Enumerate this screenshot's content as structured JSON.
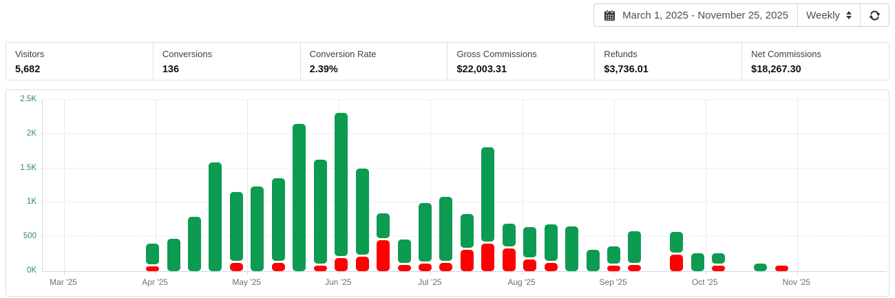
{
  "toolbar": {
    "date_range": "March 1, 2025 - November 25, 2025",
    "interval": "Weekly"
  },
  "stats": [
    {
      "label": "Visitors",
      "value": "5,682"
    },
    {
      "label": "Conversions",
      "value": "136"
    },
    {
      "label": "Conversion Rate",
      "value": "2.39%"
    },
    {
      "label": "Gross Commissions",
      "value": "$22,003.31"
    },
    {
      "label": "Refunds",
      "value": "$3,736.01"
    },
    {
      "label": "Net Commissions",
      "value": "$18,267.30"
    }
  ],
  "colors": {
    "bar_green": "#0d9b52",
    "bar_red": "#fe0000",
    "y_label": "#2e8b57",
    "x_label": "#667079"
  },
  "chart_data": {
    "type": "bar",
    "stacked": true,
    "title": "",
    "xlabel": "",
    "ylabel": "",
    "ylim": [
      0,
      2500
    ],
    "grid": true,
    "legend": false,
    "interval": "weekly",
    "y_tick_values": [
      0,
      500,
      1000,
      1500,
      2000,
      2500
    ],
    "y_tick_labels": [
      "0K",
      "500",
      "1K",
      "1.5K",
      "2K",
      "2.5K"
    ],
    "x_tick_labels": [
      "Mar '25",
      "Apr '25",
      "May '25",
      "Jun '25",
      "Jul '25",
      "Aug '25",
      "Sep '25",
      "Oct '25",
      "Nov '25"
    ],
    "series": [
      {
        "name": "Commissions",
        "color": "#0d9b52"
      },
      {
        "name": "Refunds",
        "color": "#fe0000"
      }
    ],
    "bars": [
      {
        "slot": 0,
        "green": 305,
        "red": 70
      },
      {
        "slot": 1,
        "green": 470,
        "red": 0
      },
      {
        "slot": 2,
        "green": 790,
        "red": 0
      },
      {
        "slot": 3,
        "green": 1590,
        "red": 0
      },
      {
        "slot": 4,
        "green": 1000,
        "red": 125
      },
      {
        "slot": 5,
        "green": 1240,
        "red": 0
      },
      {
        "slot": 6,
        "green": 1210,
        "red": 120
      },
      {
        "slot": 7,
        "green": 2150,
        "red": 0
      },
      {
        "slot": 8,
        "green": 1515,
        "red": 85
      },
      {
        "slot": 9,
        "green": 2090,
        "red": 190
      },
      {
        "slot": 10,
        "green": 1255,
        "red": 210
      },
      {
        "slot": 11,
        "green": 360,
        "red": 450
      },
      {
        "slot": 12,
        "green": 345,
        "red": 90
      },
      {
        "slot": 13,
        "green": 845,
        "red": 115
      },
      {
        "slot": 14,
        "green": 930,
        "red": 125
      },
      {
        "slot": 15,
        "green": 490,
        "red": 315
      },
      {
        "slot": 16,
        "green": 1375,
        "red": 405
      },
      {
        "slot": 17,
        "green": 330,
        "red": 330
      },
      {
        "slot": 18,
        "green": 445,
        "red": 170
      },
      {
        "slot": 19,
        "green": 535,
        "red": 120
      },
      {
        "slot": 20,
        "green": 650,
        "red": 0
      },
      {
        "slot": 21,
        "green": 315,
        "red": 0
      },
      {
        "slot": 22,
        "green": 255,
        "red": 80
      },
      {
        "slot": 23,
        "green": 465,
        "red": 90
      },
      {
        "slot": 25,
        "green": 305,
        "red": 240
      },
      {
        "slot": 26,
        "green": 265,
        "red": 0
      },
      {
        "slot": 27,
        "green": 150,
        "red": 80
      },
      {
        "slot": 29,
        "green": 110,
        "red": 0
      },
      {
        "slot": 30,
        "green": 0,
        "red": 80
      }
    ]
  }
}
